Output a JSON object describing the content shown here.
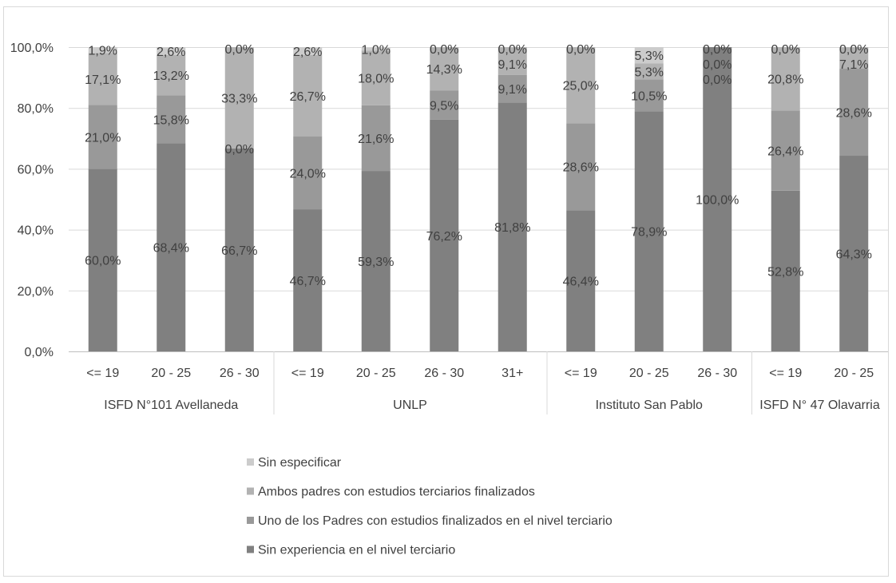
{
  "chart_data": {
    "type": "bar",
    "stacked": true,
    "ylim": [
      0,
      100
    ],
    "yticks": [
      "0,0%",
      "20,0%",
      "40,0%",
      "60,0%",
      "80,0%",
      "100,0%"
    ],
    "grid": true,
    "legend_position": "bottom",
    "groups": [
      {
        "label": "ISFD N°101 Avellaneda",
        "categories": [
          "<= 19",
          "20 - 25",
          "26 - 30"
        ]
      },
      {
        "label": "UNLP",
        "categories": [
          "<= 19",
          "20 - 25",
          "26 - 30",
          "31+"
        ]
      },
      {
        "label": "Instituto San Pablo",
        "categories": [
          "<= 19",
          "20 - 25",
          "26 - 30"
        ]
      },
      {
        "label": "ISFD N° 47 Olavarria",
        "categories": [
          "<= 19",
          "20 - 25"
        ]
      }
    ],
    "series": [
      {
        "name": "Sin experiencia en el nivel terciario",
        "color": "#808080",
        "values": [
          60.0,
          68.4,
          66.7,
          46.7,
          59.3,
          76.2,
          81.8,
          46.4,
          78.9,
          100.0,
          52.8,
          64.3
        ],
        "labels": [
          "60,0%",
          "68,4%",
          "66,7%",
          "46,7%",
          "59,3%",
          "76,2%",
          "81,8%",
          "46,4%",
          "78,9%",
          "100,0%",
          "52,8%",
          "64,3%"
        ]
      },
      {
        "name": "Uno de los Padres con estudios finalizados en el nivel terciario",
        "color": "#999999",
        "values": [
          21.0,
          15.8,
          0.0,
          24.0,
          21.6,
          9.5,
          9.1,
          28.6,
          10.5,
          0.0,
          26.4,
          28.6
        ],
        "labels": [
          "21,0%",
          "15,8%",
          "0,0%",
          "24,0%",
          "21,6%",
          "9,5%",
          "9,1%",
          "28,6%",
          "10,5%",
          "0,0%",
          "26,4%",
          "28,6%"
        ]
      },
      {
        "name": "Ambos padres con estudios terciarios finalizados",
        "color": "#b2b2b2",
        "values": [
          17.1,
          13.2,
          33.3,
          26.7,
          18.0,
          14.3,
          9.1,
          25.0,
          5.3,
          0.0,
          20.8,
          7.1
        ],
        "labels": [
          "17,1%",
          "13,2%",
          "33,3%",
          "26,7%",
          "18,0%",
          "14,3%",
          "9,1%",
          "25,0%",
          "5,3%",
          "0,0%",
          "20,8%",
          "7,1%"
        ]
      },
      {
        "name": "Sin especificar",
        "color": "#cccccc",
        "values": [
          1.9,
          2.6,
          0.0,
          2.6,
          1.0,
          0.0,
          0.0,
          0.0,
          5.3,
          0.0,
          0.0,
          0.0
        ],
        "labels": [
          "1,9%",
          "2,6%",
          "0,0%",
          "2,6%",
          "1,0%",
          "0,0%",
          "0,0%",
          "0,0%",
          "5,3%",
          "0,0%",
          "0,0%",
          "0,0%"
        ]
      }
    ]
  }
}
